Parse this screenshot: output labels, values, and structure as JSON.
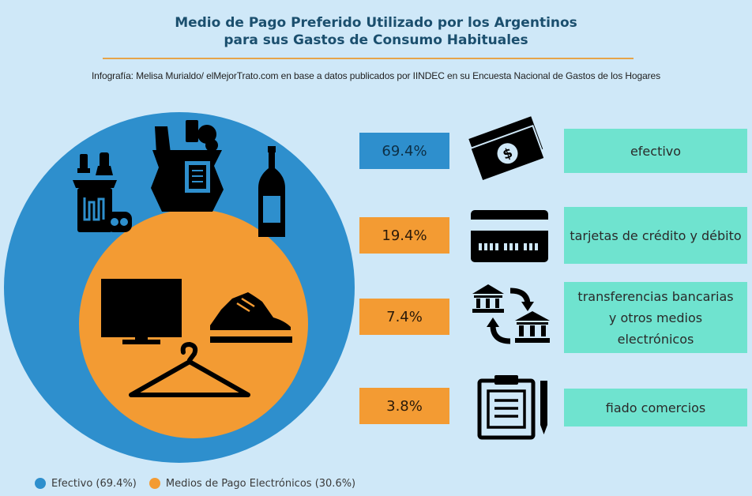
{
  "header": {
    "title_line1": "Medio de Pago Preferido Utilizado por los Argentinos",
    "title_line2": "para sus Gastos de Consumo Habituales",
    "credit": "Infografía: Melisa Murialdo/ elMejorTrato.com en base a datos publicados por IINDEC en su Encuesta Nacional de Gastos de los Hogares"
  },
  "colors": {
    "efectivo": "#2e8fcd",
    "electronicos": "#f39b33",
    "label_bg": "#6fe3cf"
  },
  "chart_data": {
    "type": "pie",
    "title": "Medio de Pago Preferido Utilizado por los Argentinos para sus Gastos de Consumo Habituales",
    "slices": [
      {
        "name": "Efectivo",
        "value": 69.4
      },
      {
        "name": "Medios de Pago Electrónicos",
        "value": 30.6
      }
    ],
    "legend": [
      "Efectivo (69.4%)",
      "Medios de Pago Electrónicos (30.6%)"
    ],
    "legend_position": "bottom-left"
  },
  "breakdown": [
    {
      "value": "69.4%",
      "label": "efectivo",
      "icon": "cash-icon",
      "color": "blue"
    },
    {
      "value": "19.4%",
      "label": "tarjetas de crédito y débito",
      "icon": "credit-card-icon",
      "color": "orange"
    },
    {
      "value": "7.4%",
      "label": "transferencias bancarias y otros medios electrónicos",
      "icon": "bank-transfer-icon",
      "color": "orange"
    },
    {
      "value": "3.8%",
      "label": "fiado comercios",
      "icon": "clipboard-icon",
      "color": "orange"
    }
  ],
  "pie_icons": [
    "cleaning-supplies-icon",
    "grocery-bag-icon",
    "wine-bottle-icon",
    "tv-icon",
    "sneaker-icon",
    "hanger-icon"
  ]
}
